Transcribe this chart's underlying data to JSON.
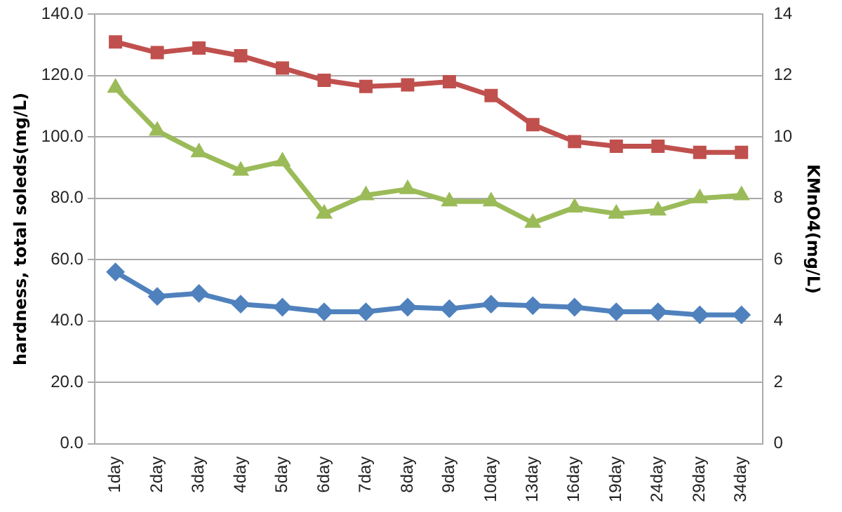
{
  "chart_data": {
    "type": "line",
    "ylabel": "hardness, total soleds(mg/L)",
    "y2label": "KMnO4(mg/L)",
    "categories": [
      "1day",
      "2day",
      "3day",
      "4day",
      "5day",
      "6day",
      "7day",
      "8day",
      "9day",
      "10day",
      "13day",
      "16day",
      "19day",
      "24day",
      "29day",
      "34day"
    ],
    "ylim": [
      0,
      140
    ],
    "yticks": [
      {
        "value": 0,
        "label": "0.0"
      },
      {
        "value": 20,
        "label": "20.0"
      },
      {
        "value": 40,
        "label": "40.0"
      },
      {
        "value": 60,
        "label": "60.0"
      },
      {
        "value": 80,
        "label": "80.0"
      },
      {
        "value": 100,
        "label": "100.0"
      },
      {
        "value": 120,
        "label": "120.0"
      },
      {
        "value": 140,
        "label": "140.0"
      }
    ],
    "y2lim": [
      0,
      14
    ],
    "y2ticks": [
      0,
      2,
      4,
      6,
      8,
      10,
      12,
      14
    ],
    "grid": "y",
    "legend": false,
    "line_style": "solid",
    "series": [
      {
        "color": "#c0504d",
        "marker": "square",
        "values": [
          131,
          127.5,
          129,
          126.5,
          122.5,
          118.5,
          116.5,
          117,
          118,
          113.5,
          104,
          98.5,
          97,
          97,
          95,
          95
        ]
      },
      {
        "color": "#9bbb59",
        "marker": "triangle",
        "axis": "y2",
        "values": [
          11.6,
          10.2,
          9.5,
          8.9,
          9.2,
          7.5,
          8.1,
          8.3,
          7.9,
          7.9,
          7.2,
          7.7,
          7.5,
          7.6,
          8.0,
          8.1
        ]
      },
      {
        "color": "#4f81bd",
        "marker": "diamond",
        "values": [
          56,
          48,
          49,
          45.5,
          44.5,
          43,
          43,
          44.5,
          44,
          45.5,
          45,
          44.5,
          43,
          43,
          42,
          42
        ]
      }
    ]
  }
}
